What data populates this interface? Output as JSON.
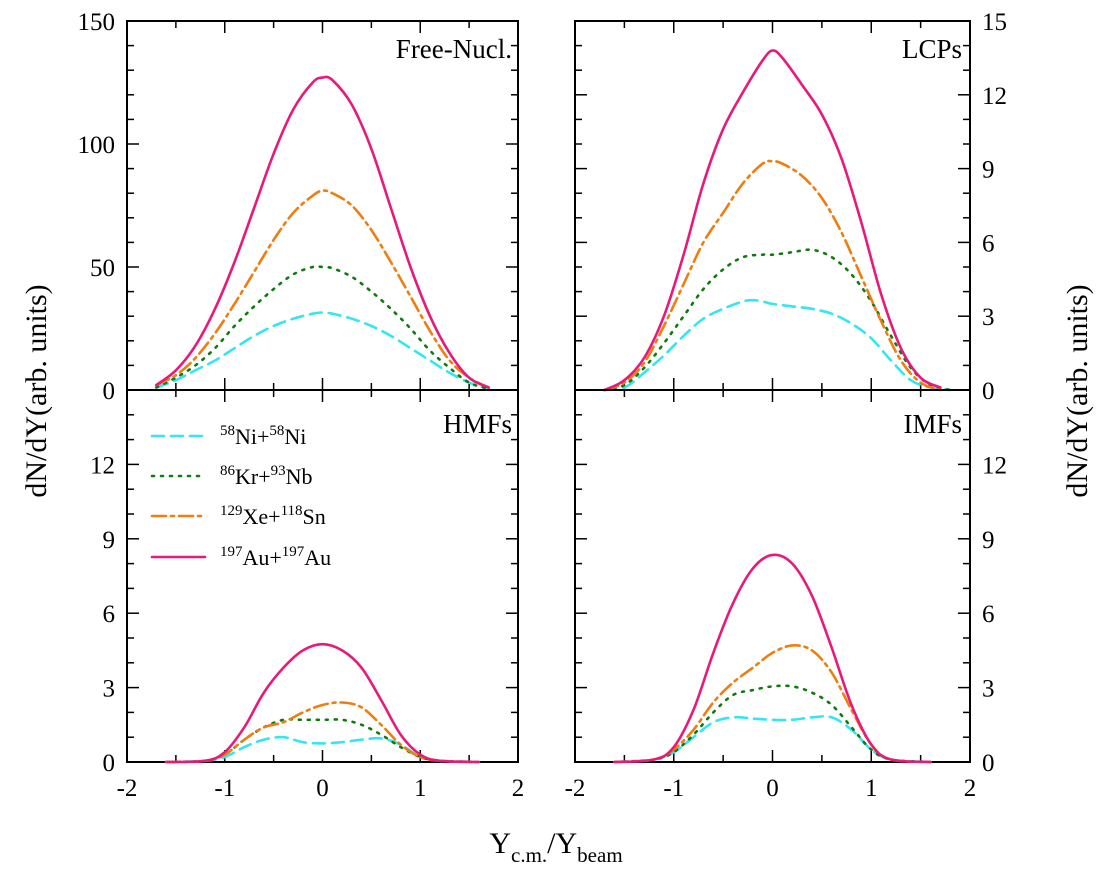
{
  "figure": {
    "xlabel_main": "Y",
    "xlabel_sub1": "c.m.",
    "xlabel_mid": "/Y",
    "xlabel_sub2": "beam",
    "ylabel_left": "dN/dY(arb. units)",
    "ylabel_right": "dN/dY(arb. units)"
  },
  "legend": {
    "entries": [
      {
        "pre": "58",
        "a": "Ni+",
        "sup2": "58",
        "b": "Ni",
        "color": "#33e6f2",
        "style": "dashed"
      },
      {
        "pre": "86",
        "a": "Kr+",
        "sup2": "93",
        "b": "Nb",
        "color": "#107a10",
        "style": "dotted"
      },
      {
        "pre": "129",
        "a": "Xe+",
        "sup2": "118",
        "b": "Sn",
        "color": "#f07d10",
        "style": "dashdot"
      },
      {
        "pre": "197",
        "a": "Au+",
        "sup2": "197",
        "b": "Au",
        "color": "#e8197a",
        "style": "solid"
      }
    ]
  },
  "chart_data": [
    {
      "type": "line",
      "panel": "top-left",
      "label": "Free-Nucl.",
      "xlim": [
        -2,
        2
      ],
      "ylim": [
        0,
        150
      ],
      "x_ticks": [
        "-2",
        "-1",
        "0",
        "1",
        "2"
      ],
      "y_ticks": [
        "0",
        "50",
        "100",
        "150"
      ],
      "series": [
        {
          "name": "58Ni+58Ni",
          "x": [
            -1.7,
            -1.5,
            -1.3,
            -1.1,
            -0.9,
            -0.7,
            -0.5,
            -0.3,
            -0.1,
            0,
            0.1,
            0.3,
            0.5,
            0.7,
            0.9,
            1.1,
            1.3,
            1.5,
            1.7
          ],
          "y": [
            1,
            4,
            8,
            12,
            17,
            22,
            26,
            29,
            31,
            31.5,
            31,
            29,
            26,
            22,
            17,
            12,
            7,
            3,
            0.5
          ]
        },
        {
          "name": "86Kr+93Nb",
          "x": [
            -1.7,
            -1.5,
            -1.3,
            -1.1,
            -0.9,
            -0.7,
            -0.5,
            -0.3,
            -0.1,
            0,
            0.1,
            0.3,
            0.5,
            0.7,
            0.9,
            1.1,
            1.3,
            1.5,
            1.7
          ],
          "y": [
            1,
            5,
            10,
            17,
            26,
            34,
            41,
            47,
            50,
            50,
            49.5,
            46,
            40,
            33,
            25,
            16,
            9,
            3,
            0.5
          ]
        },
        {
          "name": "129Xe+118Sn",
          "x": [
            -1.7,
            -1.5,
            -1.3,
            -1.1,
            -0.9,
            -0.7,
            -0.5,
            -0.3,
            -0.1,
            0,
            0.1,
            0.3,
            0.5,
            0.7,
            0.9,
            1.1,
            1.3,
            1.5,
            1.7
          ],
          "y": [
            2,
            6,
            13,
            23,
            35,
            48,
            61,
            72,
            79,
            81,
            80,
            75,
            65,
            52,
            38,
            24,
            12,
            5,
            1
          ]
        },
        {
          "name": "197Au+197Au",
          "x": [
            -1.7,
            -1.5,
            -1.3,
            -1.1,
            -0.9,
            -0.7,
            -0.5,
            -0.3,
            -0.1,
            0,
            0.1,
            0.3,
            0.5,
            0.7,
            0.9,
            1.1,
            1.3,
            1.5,
            1.7
          ],
          "y": [
            2,
            8,
            18,
            33,
            52,
            74,
            96,
            114,
            125,
            127,
            126,
            116,
            98,
            74,
            50,
            30,
            15,
            5,
            1
          ]
        }
      ]
    },
    {
      "type": "line",
      "panel": "top-right",
      "label": "LCPs",
      "xlim": [
        -2,
        2
      ],
      "ylim": [
        0,
        15
      ],
      "x_ticks": [
        "-2",
        "-1",
        "0",
        "1",
        "2"
      ],
      "y_ticks": [
        "0",
        "3",
        "6",
        "9",
        "12",
        "15"
      ],
      "series": [
        {
          "name": "58Ni+58Ni",
          "x": [
            -1.7,
            -1.5,
            -1.3,
            -1.1,
            -0.9,
            -0.7,
            -0.5,
            -0.3,
            -0.2,
            -0.1,
            0,
            0.2,
            0.4,
            0.6,
            0.8,
            1.0,
            1.2,
            1.4,
            1.6,
            1.8
          ],
          "y": [
            0,
            0.1,
            0.7,
            1.4,
            2.2,
            2.9,
            3.3,
            3.6,
            3.65,
            3.6,
            3.5,
            3.4,
            3.3,
            3.1,
            2.7,
            2.1,
            1.2,
            0.4,
            0.1,
            0
          ]
        },
        {
          "name": "86Kr+93Nb",
          "x": [
            -1.7,
            -1.5,
            -1.3,
            -1.1,
            -0.9,
            -0.7,
            -0.5,
            -0.3,
            -0.1,
            0,
            0.2,
            0.4,
            0.6,
            0.8,
            1.0,
            1.2,
            1.4,
            1.6,
            1.8
          ],
          "y": [
            0,
            0.2,
            0.9,
            1.9,
            3.0,
            4.1,
            4.9,
            5.4,
            5.5,
            5.5,
            5.6,
            5.7,
            5.4,
            4.7,
            3.6,
            2.2,
            0.9,
            0.2,
            0
          ]
        },
        {
          "name": "129Xe+118Sn",
          "x": [
            -1.7,
            -1.5,
            -1.3,
            -1.1,
            -0.9,
            -0.7,
            -0.5,
            -0.3,
            -0.1,
            0,
            0.1,
            0.3,
            0.5,
            0.7,
            0.9,
            1.1,
            1.3,
            1.5,
            1.7
          ],
          "y": [
            0,
            0.3,
            1.1,
            2.6,
            4.3,
            6.0,
            7.2,
            8.4,
            9.2,
            9.3,
            9.2,
            8.7,
            7.8,
            6.4,
            4.6,
            2.8,
            1.2,
            0.3,
            0
          ]
        },
        {
          "name": "197Au+197Au",
          "x": [
            -1.7,
            -1.5,
            -1.3,
            -1.1,
            -0.9,
            -0.7,
            -0.5,
            -0.3,
            -0.1,
            0,
            0.1,
            0.3,
            0.5,
            0.7,
            0.9,
            1.1,
            1.3,
            1.5,
            1.7
          ],
          "y": [
            0,
            0.4,
            1.3,
            3.0,
            5.5,
            8.4,
            10.6,
            12.1,
            13.4,
            13.8,
            13.5,
            12.4,
            11.2,
            9.4,
            6.8,
            3.9,
            1.7,
            0.5,
            0.1
          ]
        }
      ]
    },
    {
      "type": "line",
      "panel": "bottom-left",
      "label": "HMFs",
      "xlim": [
        -2,
        2
      ],
      "ylim": [
        0,
        15
      ],
      "x_ticks": [
        "-2",
        "-1",
        "0",
        "1",
        "2"
      ],
      "y_ticks": [
        "0",
        "3",
        "6",
        "9",
        "12"
      ],
      "series": [
        {
          "name": "58Ni+58Ni",
          "x": [
            -1.6,
            -1.2,
            -1.0,
            -0.8,
            -0.6,
            -0.4,
            -0.2,
            0,
            0.2,
            0.4,
            0.6,
            0.8,
            1.0,
            1.2,
            1.6
          ],
          "y": [
            0,
            0.05,
            0.2,
            0.6,
            0.9,
            1.0,
            0.8,
            0.75,
            0.8,
            0.9,
            0.95,
            0.7,
            0.2,
            0.05,
            0
          ]
        },
        {
          "name": "86Kr+93Nb",
          "x": [
            -1.6,
            -1.2,
            -1.0,
            -0.8,
            -0.6,
            -0.4,
            -0.2,
            0,
            0.2,
            0.4,
            0.6,
            0.8,
            1.0,
            1.2,
            1.6
          ],
          "y": [
            0,
            0.05,
            0.3,
            0.9,
            1.4,
            1.7,
            1.7,
            1.7,
            1.7,
            1.5,
            1.1,
            0.6,
            0.2,
            0.05,
            0
          ]
        },
        {
          "name": "129Xe+118Sn",
          "x": [
            -1.6,
            -1.2,
            -1.0,
            -0.8,
            -0.6,
            -0.4,
            -0.2,
            0,
            0.2,
            0.4,
            0.6,
            0.8,
            1.0,
            1.2,
            1.6
          ],
          "y": [
            0,
            0.05,
            0.3,
            0.9,
            1.4,
            1.6,
            2.0,
            2.3,
            2.4,
            2.2,
            1.5,
            0.7,
            0.2,
            0.05,
            0
          ]
        },
        {
          "name": "197Au+197Au",
          "x": [
            -1.6,
            -1.2,
            -1.0,
            -0.8,
            -0.6,
            -0.4,
            -0.2,
            0,
            0.2,
            0.4,
            0.6,
            0.8,
            1.0,
            1.2,
            1.6
          ],
          "y": [
            0,
            0.05,
            0.4,
            1.4,
            2.8,
            3.8,
            4.5,
            4.75,
            4.5,
            3.8,
            2.5,
            1.1,
            0.3,
            0.05,
            0
          ]
        }
      ]
    },
    {
      "type": "line",
      "panel": "bottom-right",
      "label": "IMFs",
      "xlim": [
        -2,
        2
      ],
      "ylim": [
        0,
        15
      ],
      "x_ticks": [
        "-2",
        "-1",
        "0",
        "1",
        "2"
      ],
      "y_ticks": [
        "0",
        "3",
        "6",
        "9",
        "12"
      ],
      "series": [
        {
          "name": "58Ni+58Ni",
          "x": [
            -1.6,
            -1.2,
            -1.0,
            -0.8,
            -0.6,
            -0.4,
            -0.2,
            0,
            0.2,
            0.4,
            0.6,
            0.8,
            1.0,
            1.2,
            1.6
          ],
          "y": [
            0,
            0.1,
            0.4,
            1.0,
            1.6,
            1.8,
            1.75,
            1.7,
            1.7,
            1.8,
            1.8,
            1.3,
            0.5,
            0.1,
            0
          ]
        },
        {
          "name": "86Kr+93Nb",
          "x": [
            -1.6,
            -1.2,
            -1.0,
            -0.8,
            -0.6,
            -0.4,
            -0.2,
            0,
            0.2,
            0.4,
            0.6,
            0.8,
            1.0,
            1.2,
            1.6
          ],
          "y": [
            0,
            0.1,
            0.4,
            1.1,
            2.0,
            2.7,
            2.9,
            3.05,
            3.05,
            2.8,
            2.3,
            1.4,
            0.5,
            0.1,
            0
          ]
        },
        {
          "name": "129Xe+118Sn",
          "x": [
            -1.6,
            -1.2,
            -1.0,
            -0.8,
            -0.6,
            -0.4,
            -0.2,
            0,
            0.2,
            0.4,
            0.6,
            0.8,
            1.0,
            1.2,
            1.6
          ],
          "y": [
            0,
            0.1,
            0.5,
            1.3,
            2.4,
            3.2,
            3.8,
            4.4,
            4.7,
            4.5,
            3.6,
            2.1,
            0.7,
            0.1,
            0
          ]
        },
        {
          "name": "197Au+197Au",
          "x": [
            -1.6,
            -1.2,
            -1.0,
            -0.8,
            -0.6,
            -0.4,
            -0.2,
            0,
            0.2,
            0.4,
            0.6,
            0.8,
            1.0,
            1.2,
            1.6
          ],
          "y": [
            0,
            0.1,
            0.6,
            2.1,
            4.4,
            6.4,
            7.8,
            8.35,
            8.0,
            6.7,
            4.6,
            2.3,
            0.7,
            0.1,
            0
          ]
        }
      ]
    }
  ]
}
